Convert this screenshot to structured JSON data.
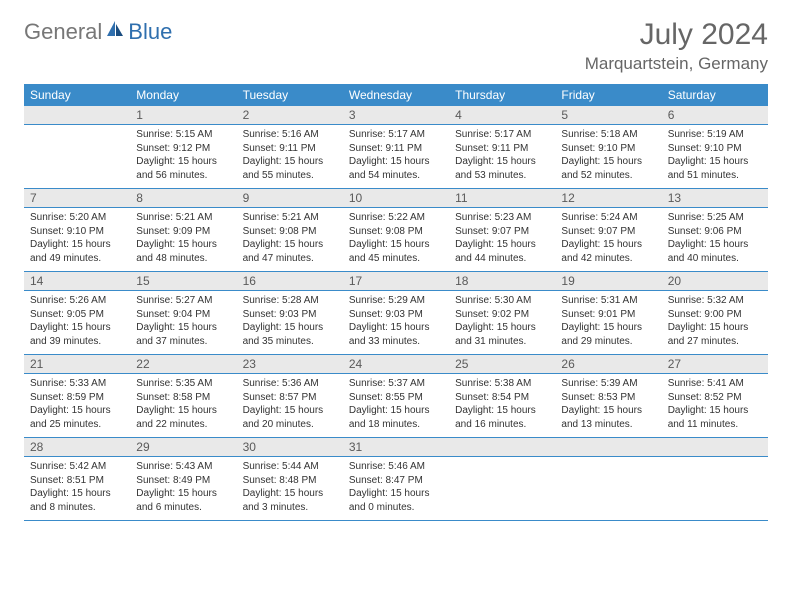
{
  "brand": {
    "general": "General",
    "blue": "Blue"
  },
  "title": "July 2024",
  "location": "Marquartstein, Germany",
  "colors": {
    "header_bg": "#3a8bc9",
    "header_text": "#ffffff",
    "daynum_bg": "#e9e9e9",
    "rule": "#3a8bc9",
    "body_text": "#333333",
    "title_text": "#666666"
  },
  "weekdays": [
    "Sunday",
    "Monday",
    "Tuesday",
    "Wednesday",
    "Thursday",
    "Friday",
    "Saturday"
  ],
  "weeks": [
    [
      null,
      {
        "n": "1",
        "sr": "5:15 AM",
        "ss": "9:12 PM",
        "dl": "15 hours and 56 minutes."
      },
      {
        "n": "2",
        "sr": "5:16 AM",
        "ss": "9:11 PM",
        "dl": "15 hours and 55 minutes."
      },
      {
        "n": "3",
        "sr": "5:17 AM",
        "ss": "9:11 PM",
        "dl": "15 hours and 54 minutes."
      },
      {
        "n": "4",
        "sr": "5:17 AM",
        "ss": "9:11 PM",
        "dl": "15 hours and 53 minutes."
      },
      {
        "n": "5",
        "sr": "5:18 AM",
        "ss": "9:10 PM",
        "dl": "15 hours and 52 minutes."
      },
      {
        "n": "6",
        "sr": "5:19 AM",
        "ss": "9:10 PM",
        "dl": "15 hours and 51 minutes."
      }
    ],
    [
      {
        "n": "7",
        "sr": "5:20 AM",
        "ss": "9:10 PM",
        "dl": "15 hours and 49 minutes."
      },
      {
        "n": "8",
        "sr": "5:21 AM",
        "ss": "9:09 PM",
        "dl": "15 hours and 48 minutes."
      },
      {
        "n": "9",
        "sr": "5:21 AM",
        "ss": "9:08 PM",
        "dl": "15 hours and 47 minutes."
      },
      {
        "n": "10",
        "sr": "5:22 AM",
        "ss": "9:08 PM",
        "dl": "15 hours and 45 minutes."
      },
      {
        "n": "11",
        "sr": "5:23 AM",
        "ss": "9:07 PM",
        "dl": "15 hours and 44 minutes."
      },
      {
        "n": "12",
        "sr": "5:24 AM",
        "ss": "9:07 PM",
        "dl": "15 hours and 42 minutes."
      },
      {
        "n": "13",
        "sr": "5:25 AM",
        "ss": "9:06 PM",
        "dl": "15 hours and 40 minutes."
      }
    ],
    [
      {
        "n": "14",
        "sr": "5:26 AM",
        "ss": "9:05 PM",
        "dl": "15 hours and 39 minutes."
      },
      {
        "n": "15",
        "sr": "5:27 AM",
        "ss": "9:04 PM",
        "dl": "15 hours and 37 minutes."
      },
      {
        "n": "16",
        "sr": "5:28 AM",
        "ss": "9:03 PM",
        "dl": "15 hours and 35 minutes."
      },
      {
        "n": "17",
        "sr": "5:29 AM",
        "ss": "9:03 PM",
        "dl": "15 hours and 33 minutes."
      },
      {
        "n": "18",
        "sr": "5:30 AM",
        "ss": "9:02 PM",
        "dl": "15 hours and 31 minutes."
      },
      {
        "n": "19",
        "sr": "5:31 AM",
        "ss": "9:01 PM",
        "dl": "15 hours and 29 minutes."
      },
      {
        "n": "20",
        "sr": "5:32 AM",
        "ss": "9:00 PM",
        "dl": "15 hours and 27 minutes."
      }
    ],
    [
      {
        "n": "21",
        "sr": "5:33 AM",
        "ss": "8:59 PM",
        "dl": "15 hours and 25 minutes."
      },
      {
        "n": "22",
        "sr": "5:35 AM",
        "ss": "8:58 PM",
        "dl": "15 hours and 22 minutes."
      },
      {
        "n": "23",
        "sr": "5:36 AM",
        "ss": "8:57 PM",
        "dl": "15 hours and 20 minutes."
      },
      {
        "n": "24",
        "sr": "5:37 AM",
        "ss": "8:55 PM",
        "dl": "15 hours and 18 minutes."
      },
      {
        "n": "25",
        "sr": "5:38 AM",
        "ss": "8:54 PM",
        "dl": "15 hours and 16 minutes."
      },
      {
        "n": "26",
        "sr": "5:39 AM",
        "ss": "8:53 PM",
        "dl": "15 hours and 13 minutes."
      },
      {
        "n": "27",
        "sr": "5:41 AM",
        "ss": "8:52 PM",
        "dl": "15 hours and 11 minutes."
      }
    ],
    [
      {
        "n": "28",
        "sr": "5:42 AM",
        "ss": "8:51 PM",
        "dl": "15 hours and 8 minutes."
      },
      {
        "n": "29",
        "sr": "5:43 AM",
        "ss": "8:49 PM",
        "dl": "15 hours and 6 minutes."
      },
      {
        "n": "30",
        "sr": "5:44 AM",
        "ss": "8:48 PM",
        "dl": "15 hours and 3 minutes."
      },
      {
        "n": "31",
        "sr": "5:46 AM",
        "ss": "8:47 PM",
        "dl": "15 hours and 0 minutes."
      },
      null,
      null,
      null
    ]
  ],
  "labels": {
    "sunrise": "Sunrise:",
    "sunset": "Sunset:",
    "daylight": "Daylight:"
  }
}
